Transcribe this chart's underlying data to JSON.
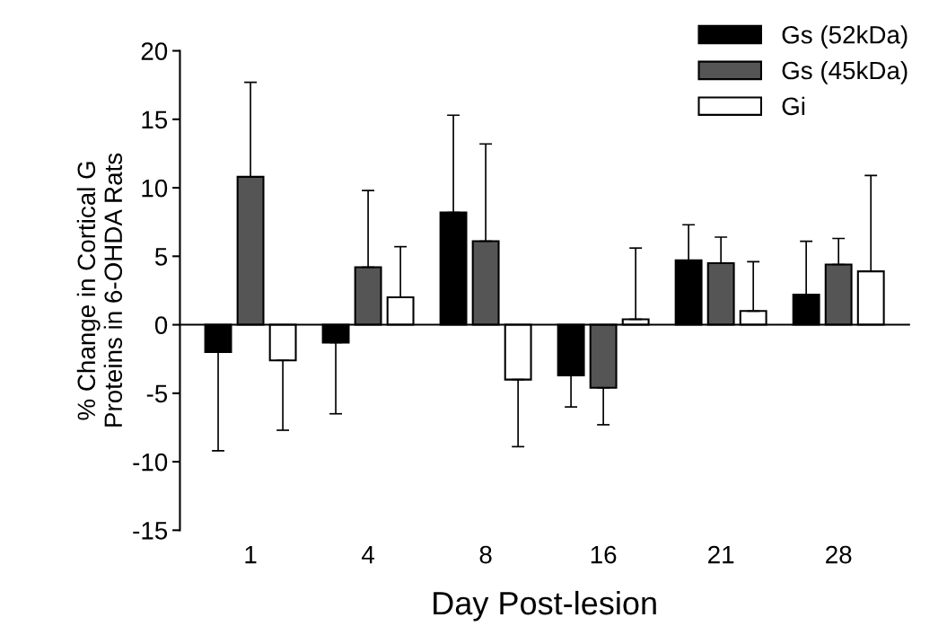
{
  "chart_data": {
    "type": "bar",
    "xlabel": "Day Post-lesion",
    "ylabel": "% Change in Cortical G\nProteins in 6-OHDA Rats",
    "categories": [
      "1",
      "4",
      "8",
      "16",
      "21",
      "28"
    ],
    "series": [
      {
        "name": "Gs (52kDa)",
        "color": "#000000",
        "values": [
          -2.0,
          -1.3,
          8.2,
          -3.7,
          4.7,
          2.2
        ],
        "errors": [
          [
            -9.2,
            -2.0
          ],
          [
            -6.5,
            -1.3
          ],
          [
            8.2,
            15.3
          ],
          [
            -6.0,
            -3.7
          ],
          [
            4.7,
            7.3
          ],
          [
            2.2,
            6.1
          ]
        ]
      },
      {
        "name": "Gs (45kDa)",
        "color": "#555555",
        "values": [
          10.8,
          4.2,
          6.1,
          -4.6,
          4.5,
          4.4
        ],
        "errors": [
          [
            10.8,
            17.7
          ],
          [
            4.2,
            9.8
          ],
          [
            6.1,
            13.2
          ],
          [
            -7.3,
            -4.6
          ],
          [
            4.5,
            6.4
          ],
          [
            4.4,
            6.3
          ]
        ]
      },
      {
        "name": "Gi",
        "color": "#ffffff",
        "values": [
          -2.6,
          2.0,
          -4.0,
          0.4,
          1.0,
          3.9
        ],
        "errors": [
          [
            -7.7,
            -2.6
          ],
          [
            2.0,
            5.7
          ],
          [
            -8.9,
            -4.0
          ],
          [
            0.4,
            5.6
          ],
          [
            1.0,
            4.6
          ],
          [
            3.9,
            10.9
          ]
        ]
      }
    ],
    "ylim": [
      -15,
      20
    ],
    "yticks": [
      -15,
      -10,
      -5,
      0,
      5,
      10,
      15,
      20
    ],
    "legend": "top right"
  }
}
